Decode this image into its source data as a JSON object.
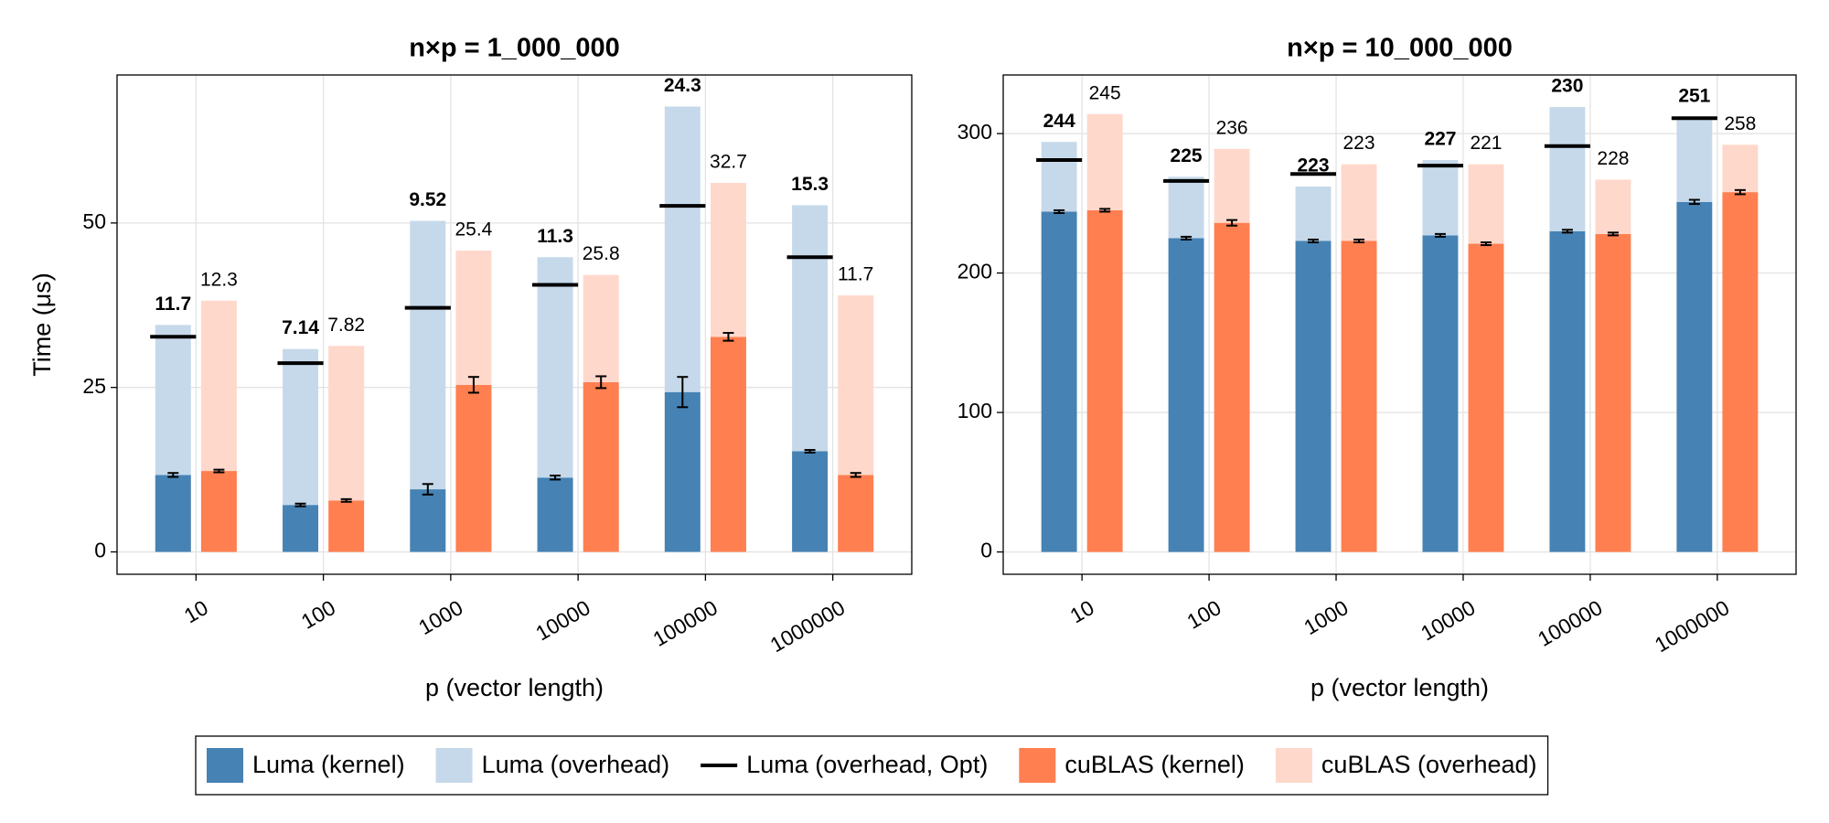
{
  "chart_data": [
    {
      "type": "bar",
      "title": "n×p = 1_000_000",
      "xlabel": "p (vector length)",
      "ylabel": "Time (μs)",
      "categories": [
        "10",
        "100",
        "1000",
        "10000",
        "100000",
        "1000000"
      ],
      "ylim": [
        -3.4,
        72.5
      ],
      "yticks": [
        0,
        25,
        50
      ],
      "grid": true,
      "series": [
        {
          "name": "Luma (kernel)",
          "color": "#4682b4",
          "values": [
            11.7,
            7.14,
            9.52,
            11.3,
            24.3,
            15.3
          ],
          "errors": [
            0.3,
            0.2,
            0.8,
            0.3,
            2.3,
            0.2
          ]
        },
        {
          "name": "Luma (overhead)",
          "color": "#c6d9ea",
          "values": [
            22.8,
            23.7,
            40.8,
            33.5,
            43.4,
            37.4
          ]
        },
        {
          "name": "Luma (overhead, Opt)",
          "color": "#000000",
          "values": [
            32.7,
            28.7,
            37.1,
            40.6,
            52.6,
            44.8
          ]
        },
        {
          "name": "cuBLAS (kernel)",
          "color": "#ff7f50",
          "values": [
            12.3,
            7.82,
            25.4,
            25.8,
            32.7,
            11.7
          ],
          "errors": [
            0.2,
            0.2,
            1.2,
            0.9,
            0.6,
            0.3
          ]
        },
        {
          "name": "cuBLAS (overhead)",
          "color": "#ffd8cc",
          "values": [
            25.9,
            23.5,
            20.4,
            16.3,
            23.4,
            27.3
          ]
        }
      ]
    },
    {
      "type": "bar",
      "title": "n×p = 10_000_000",
      "xlabel": "p (vector length)",
      "categories": [
        "10",
        "100",
        "1000",
        "10000",
        "100000",
        "1000000"
      ],
      "ylim": [
        -16,
        342
      ],
      "yticks": [
        0,
        100,
        200,
        300
      ],
      "grid": true,
      "series": [
        {
          "color": "#4682b4",
          "values": [
            244,
            225,
            223,
            227,
            230,
            251
          ],
          "errors": [
            1,
            1,
            1,
            1,
            1,
            1.5
          ]
        },
        {
          "color": "#c6d9ea",
          "values": [
            50,
            44,
            39,
            54,
            89,
            61
          ]
        },
        {
          "color": "#000000",
          "values": [
            281,
            266,
            271,
            277,
            291,
            311
          ]
        },
        {
          "color": "#ff7f50",
          "values": [
            245,
            236,
            223,
            221,
            228,
            258
          ],
          "errors": [
            1,
            2,
            1,
            1,
            1,
            1.5
          ]
        },
        {
          "color": "#ffd8cc",
          "values": [
            69,
            53,
            55,
            57,
            39,
            34
          ]
        }
      ]
    }
  ]
}
